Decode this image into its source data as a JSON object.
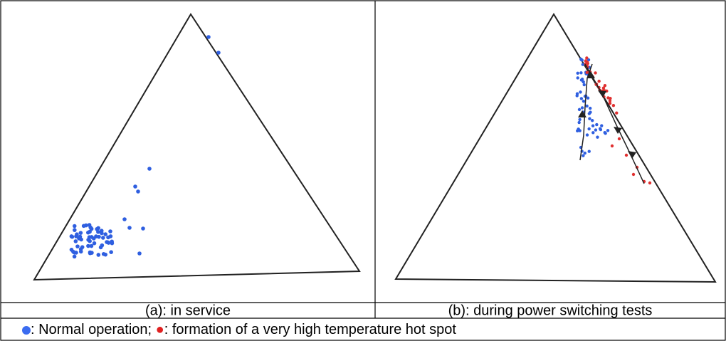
{
  "figure": {
    "captions": [
      "(a): in service",
      "(b): during power switching tests"
    ],
    "legend": [
      ": Normal operation; ",
      ": formation of a very high temperature hot spot"
    ]
  }
}
